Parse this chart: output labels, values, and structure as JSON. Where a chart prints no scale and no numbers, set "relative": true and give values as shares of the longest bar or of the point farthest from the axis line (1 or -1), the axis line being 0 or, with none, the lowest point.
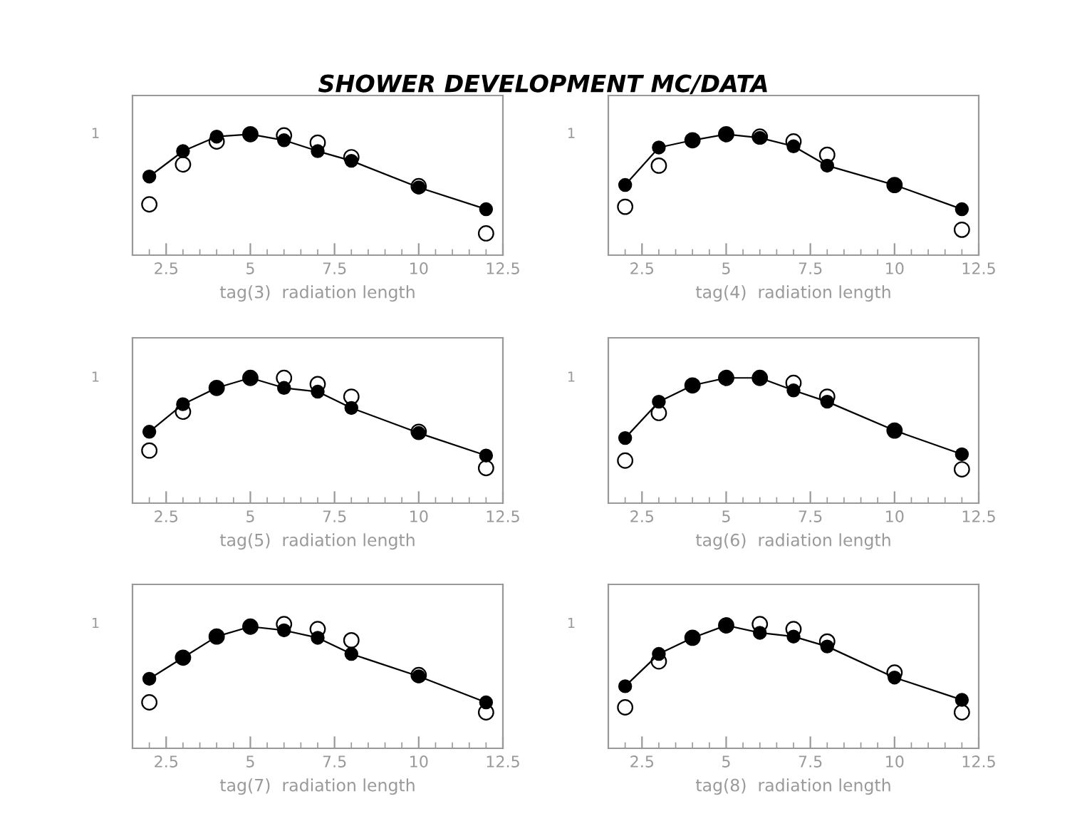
{
  "chart_data": [
    {
      "type": "line",
      "title": "SHOWER DEVELOPMENT MC/DATA",
      "xlabel": "tag(3)  radiation length",
      "relative": true,
      "annotations": [
        "1"
      ],
      "xlim": [
        1.5,
        12.5
      ],
      "xticks": [
        2.5,
        5,
        7.5,
        10,
        12.5
      ],
      "x": [
        2,
        3,
        4,
        5,
        6,
        7,
        8,
        10,
        12
      ],
      "series": [
        {
          "color": "#000000",
          "marker": "circle",
          "values": [
            0.65,
            0.86,
            0.98,
            1.0,
            0.95,
            0.86,
            0.78,
            0.56,
            0.38
          ]
        },
        {
          "type": "scatter",
          "color": "#000000",
          "marker": "circle",
          "values": [
            0.42,
            0.75,
            0.94,
            1.0,
            0.99,
            0.93,
            0.81,
            0.57,
            0.18
          ]
        }
      ]
    },
    {
      "type": "line",
      "xlabel": "tag(4)  radiation length",
      "relative": true,
      "annotations": [
        "1"
      ],
      "xlim": [
        1.5,
        12.5
      ],
      "xticks": [
        2.5,
        5,
        7.5,
        10,
        12.5
      ],
      "x": [
        2,
        3,
        4,
        5,
        6,
        7,
        8,
        10,
        12
      ],
      "series": [
        {
          "color": "#000000",
          "marker": "circle",
          "values": [
            0.58,
            0.89,
            0.95,
            1.0,
            0.97,
            0.9,
            0.74,
            0.58,
            0.38
          ]
        },
        {
          "type": "scatter",
          "color": "#000000",
          "marker": "circle",
          "values": [
            0.4,
            0.74,
            0.95,
            1.0,
            0.98,
            0.94,
            0.83,
            0.58,
            0.21
          ]
        }
      ]
    },
    {
      "type": "line",
      "xlabel": "tag(5)  radiation length",
      "relative": true,
      "annotations": [
        "1"
      ],
      "xlim": [
        1.5,
        12.5
      ],
      "xticks": [
        2.5,
        5,
        7.5,
        10,
        12.5
      ],
      "x": [
        2,
        3,
        4,
        5,
        6,
        7,
        8,
        10,
        12
      ],
      "series": [
        {
          "color": "#000000",
          "marker": "circle",
          "values": [
            0.57,
            0.79,
            0.92,
            1.0,
            0.92,
            0.89,
            0.76,
            0.56,
            0.38
          ]
        },
        {
          "type": "scatter",
          "color": "#000000",
          "marker": "circle",
          "values": [
            0.42,
            0.73,
            0.92,
            1.0,
            1.0,
            0.95,
            0.85,
            0.57,
            0.28
          ]
        }
      ]
    },
    {
      "type": "line",
      "xlabel": "tag(6)  radiation length",
      "relative": true,
      "annotations": [
        "1"
      ],
      "xlim": [
        1.5,
        12.5
      ],
      "xticks": [
        2.5,
        5,
        7.5,
        10,
        12.5
      ],
      "x": [
        2,
        3,
        4,
        5,
        6,
        7,
        8,
        10,
        12
      ],
      "series": [
        {
          "color": "#000000",
          "marker": "circle",
          "values": [
            0.52,
            0.81,
            0.94,
            1.0,
            1.0,
            0.9,
            0.81,
            0.58,
            0.39
          ]
        },
        {
          "type": "scatter",
          "color": "#000000",
          "marker": "circle",
          "values": [
            0.34,
            0.72,
            0.94,
            1.0,
            1.0,
            0.96,
            0.85,
            0.58,
            0.27
          ]
        }
      ]
    },
    {
      "type": "line",
      "xlabel": "tag(7)  radiation length",
      "relative": true,
      "annotations": [
        "1"
      ],
      "xlim": [
        1.5,
        12.5
      ],
      "xticks": [
        2.5,
        5,
        7.5,
        10,
        12.5
      ],
      "x": [
        2,
        3,
        4,
        5,
        6,
        7,
        8,
        10,
        12
      ],
      "series": [
        {
          "color": "#000000",
          "marker": "circle",
          "values": [
            0.56,
            0.73,
            0.9,
            0.98,
            0.95,
            0.89,
            0.76,
            0.58,
            0.37
          ]
        },
        {
          "type": "scatter",
          "color": "#000000",
          "marker": "circle",
          "values": [
            0.37,
            0.73,
            0.9,
            0.98,
            1.0,
            0.96,
            0.87,
            0.59,
            0.29
          ]
        }
      ]
    },
    {
      "type": "line",
      "xlabel": "tag(8)  radiation length",
      "relative": true,
      "annotations": [
        "1"
      ],
      "xlim": [
        1.5,
        12.5
      ],
      "xticks": [
        2.5,
        5,
        7.5,
        10,
        12.5
      ],
      "x": [
        2,
        3,
        4,
        5,
        6,
        7,
        8,
        10,
        12
      ],
      "series": [
        {
          "color": "#000000",
          "marker": "circle",
          "values": [
            0.5,
            0.76,
            0.89,
            0.99,
            0.93,
            0.9,
            0.82,
            0.57,
            0.39
          ]
        },
        {
          "type": "scatter",
          "color": "#000000",
          "marker": "circle",
          "values": [
            0.33,
            0.7,
            0.89,
            0.99,
            1.0,
            0.96,
            0.86,
            0.61,
            0.29
          ]
        }
      ]
    }
  ]
}
